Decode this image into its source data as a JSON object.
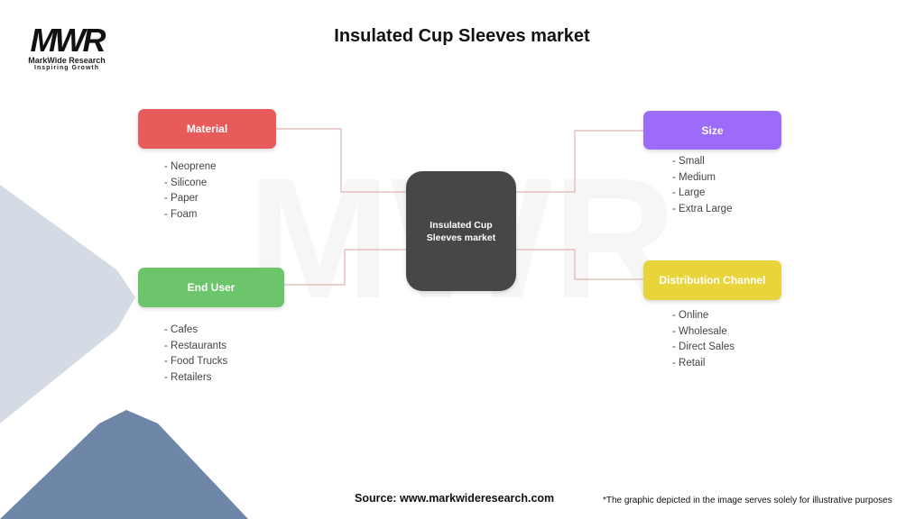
{
  "logo": {
    "mark": "MWR",
    "name": "MarkWide Research",
    "tagline": "Inspiring Growth"
  },
  "title": "Insulated Cup Sleeves market",
  "center": {
    "label": "Insulated Cup Sleeves market",
    "color": "#474747"
  },
  "categories": [
    {
      "id": "material",
      "label": "Material",
      "color": "#e85b5b",
      "items": [
        "- Neoprene",
        "- Silicone",
        "- Paper",
        "- Foam"
      ]
    },
    {
      "id": "end-user",
      "label": "End User",
      "color": "#6cc56a",
      "items": [
        "- Cafes",
        "- Restaurants",
        "- Food Trucks",
        "- Retailers"
      ]
    },
    {
      "id": "size",
      "label": "Size",
      "color": "#9c6bf7",
      "items": [
        "- Small",
        "- Medium",
        "- Large",
        "- Extra Large"
      ]
    },
    {
      "id": "distribution-channel",
      "label": "Distribution Channel",
      "color": "#e9d43b",
      "items": [
        "- Online",
        "- Wholesale",
        "- Direct Sales",
        "- Retail"
      ]
    }
  ],
  "footer": {
    "source": "Source: www.markwideresearch.com",
    "disclaimer": "*The graphic depicted in the image serves solely for illustrative purposes"
  }
}
